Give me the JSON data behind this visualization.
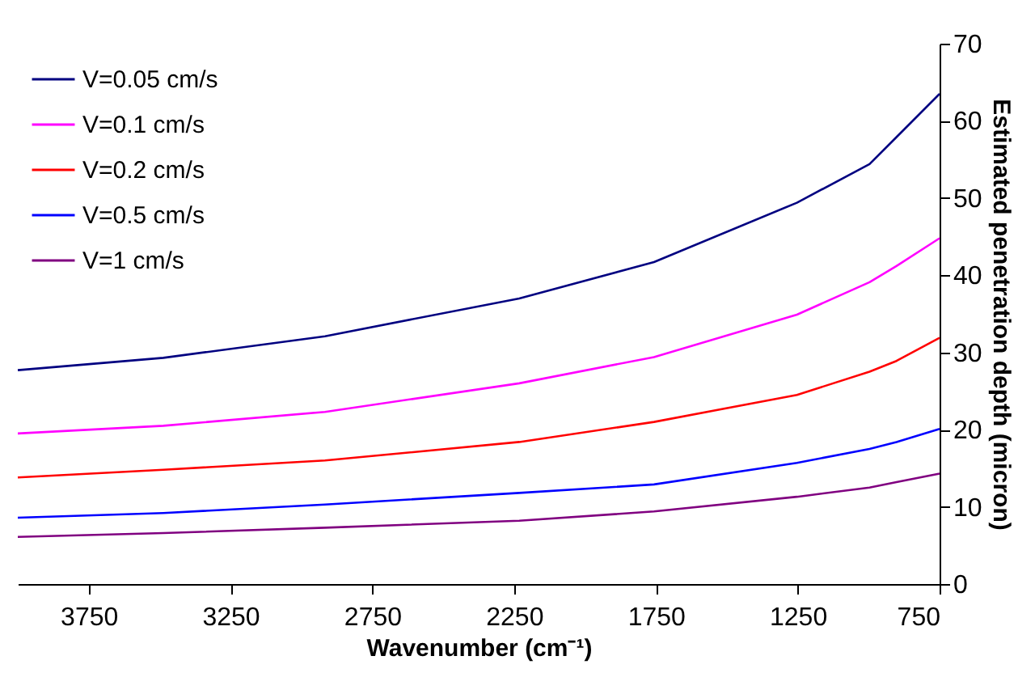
{
  "chart_data": {
    "type": "line",
    "xlabel": "Wavenumber (cm⁻¹)",
    "ylabel": "Estimated penetration depth (micron)",
    "x": [
      4000,
      3487,
      2917,
      2232,
      1757,
      1253,
      997,
      902,
      750
    ],
    "series": [
      {
        "name": "V=0.05 cm/s",
        "color": "#000080",
        "values": [
          27.7,
          29.3,
          32.1,
          37.0,
          41.7,
          49.4,
          54.4,
          57.9,
          63.5
        ]
      },
      {
        "name": "V=0.1 cm/s",
        "color": "#ff00ff",
        "values": [
          19.5,
          20.5,
          22.3,
          26.0,
          29.4,
          34.9,
          39.1,
          41.2,
          44.8
        ]
      },
      {
        "name": "V=0.2 cm/s",
        "color": "#ff0000",
        "values": [
          13.8,
          14.8,
          16.0,
          18.4,
          21.0,
          24.5,
          27.5,
          28.9,
          31.9
        ]
      },
      {
        "name": "V=0.5 cm/s",
        "color": "#0000ff",
        "values": [
          8.6,
          9.2,
          10.3,
          11.8,
          12.9,
          15.7,
          17.5,
          18.4,
          20.1
        ]
      },
      {
        "name": "V=1 cm/s",
        "color": "#800080",
        "values": [
          6.1,
          6.6,
          7.3,
          8.2,
          9.4,
          11.3,
          12.5,
          13.2,
          14.3
        ]
      }
    ],
    "xlim": [
      4000,
      750
    ],
    "xticks": [
      3750,
      3250,
      2750,
      2250,
      1750,
      1250,
      750
    ],
    "ylim": [
      0,
      70
    ],
    "yticks": [
      0,
      10,
      20,
      30,
      40,
      50,
      60,
      70
    ],
    "grid": false,
    "legend": "top left",
    "marker": "none",
    "line_style": "solid"
  }
}
